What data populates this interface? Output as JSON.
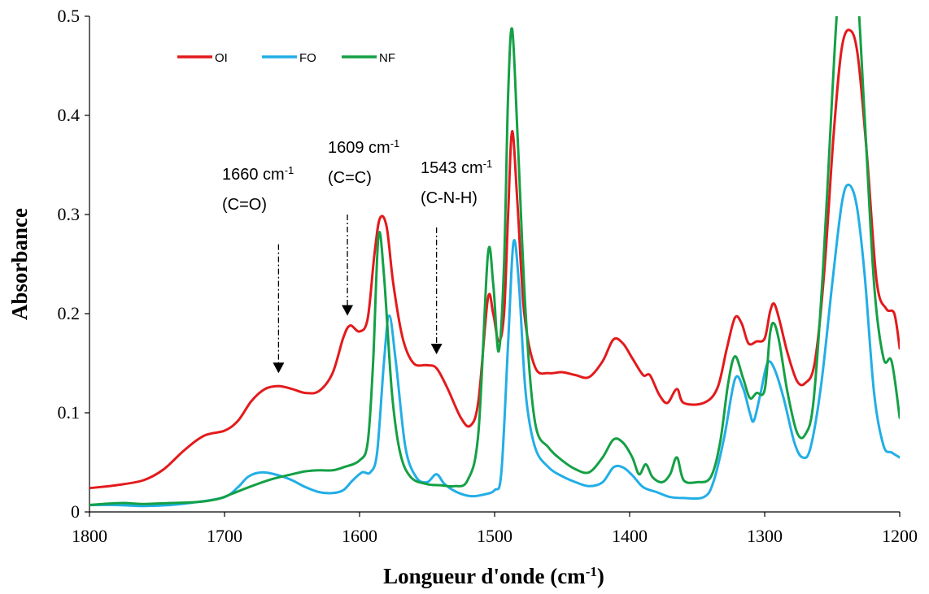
{
  "chart_data": {
    "type": "line",
    "xlabel": "Longueur d'onde (cm",
    "xlabel_sup": "-1",
    "xlabel_end": ")",
    "ylabel": "Absorbance",
    "xlim": [
      1800,
      1200
    ],
    "ylim": [
      0,
      0.5
    ],
    "x_reversed": true,
    "grid": false,
    "legend_position": "top-left",
    "x_ticks": [
      1800,
      1700,
      1600,
      1500,
      1400,
      1300,
      1200
    ],
    "y_ticks": [
      0,
      0.1,
      0.2,
      0.3,
      0.4,
      0.5
    ],
    "y_tick_labels": [
      "0",
      "0.1",
      "0.2",
      "0.3",
      "0.4",
      "0.5"
    ],
    "series": [
      {
        "name": "OI",
        "color": "#e31a1c",
        "points": [
          [
            1800,
            0.024
          ],
          [
            1780,
            0.027
          ],
          [
            1760,
            0.032
          ],
          [
            1745,
            0.043
          ],
          [
            1730,
            0.062
          ],
          [
            1715,
            0.077
          ],
          [
            1700,
            0.082
          ],
          [
            1690,
            0.092
          ],
          [
            1680,
            0.112
          ],
          [
            1670,
            0.124
          ],
          [
            1660,
            0.127
          ],
          [
            1650,
            0.124
          ],
          [
            1640,
            0.12
          ],
          [
            1630,
            0.122
          ],
          [
            1620,
            0.14
          ],
          [
            1612,
            0.176
          ],
          [
            1607,
            0.188
          ],
          [
            1600,
            0.182
          ],
          [
            1594,
            0.195
          ],
          [
            1589,
            0.26
          ],
          [
            1585,
            0.296
          ],
          [
            1580,
            0.288
          ],
          [
            1575,
            0.23
          ],
          [
            1568,
            0.175
          ],
          [
            1560,
            0.15
          ],
          [
            1550,
            0.148
          ],
          [
            1543,
            0.145
          ],
          [
            1535,
            0.125
          ],
          [
            1525,
            0.095
          ],
          [
            1518,
            0.087
          ],
          [
            1512,
            0.112
          ],
          [
            1505,
            0.215
          ],
          [
            1501,
            0.2
          ],
          [
            1497,
            0.172
          ],
          [
            1493,
            0.2
          ],
          [
            1490,
            0.3
          ],
          [
            1487,
            0.384
          ],
          [
            1483,
            0.31
          ],
          [
            1478,
            0.2
          ],
          [
            1470,
            0.146
          ],
          [
            1460,
            0.14
          ],
          [
            1450,
            0.141
          ],
          [
            1440,
            0.138
          ],
          [
            1430,
            0.136
          ],
          [
            1420,
            0.152
          ],
          [
            1412,
            0.174
          ],
          [
            1405,
            0.17
          ],
          [
            1398,
            0.155
          ],
          [
            1390,
            0.138
          ],
          [
            1385,
            0.138
          ],
          [
            1378,
            0.118
          ],
          [
            1372,
            0.11
          ],
          [
            1365,
            0.124
          ],
          [
            1360,
            0.11
          ],
          [
            1345,
            0.11
          ],
          [
            1335,
            0.125
          ],
          [
            1328,
            0.165
          ],
          [
            1322,
            0.196
          ],
          [
            1317,
            0.19
          ],
          [
            1312,
            0.17
          ],
          [
            1306,
            0.172
          ],
          [
            1300,
            0.175
          ],
          [
            1296,
            0.202
          ],
          [
            1293,
            0.21
          ],
          [
            1289,
            0.193
          ],
          [
            1283,
            0.16
          ],
          [
            1276,
            0.132
          ],
          [
            1270,
            0.13
          ],
          [
            1263,
            0.15
          ],
          [
            1256,
            0.24
          ],
          [
            1249,
            0.38
          ],
          [
            1243,
            0.467
          ],
          [
            1237,
            0.486
          ],
          [
            1231,
            0.46
          ],
          [
            1224,
            0.355
          ],
          [
            1217,
            0.232
          ],
          [
            1210,
            0.205
          ],
          [
            1204,
            0.2
          ],
          [
            1200,
            0.165
          ]
        ]
      },
      {
        "name": "FO",
        "color": "#22aee6",
        "points": [
          [
            1800,
            0.007
          ],
          [
            1780,
            0.007
          ],
          [
            1760,
            0.006
          ],
          [
            1740,
            0.007
          ],
          [
            1720,
            0.01
          ],
          [
            1700,
            0.015
          ],
          [
            1690,
            0.025
          ],
          [
            1682,
            0.036
          ],
          [
            1672,
            0.04
          ],
          [
            1660,
            0.037
          ],
          [
            1650,
            0.032
          ],
          [
            1640,
            0.025
          ],
          [
            1630,
            0.02
          ],
          [
            1620,
            0.019
          ],
          [
            1612,
            0.022
          ],
          [
            1605,
            0.032
          ],
          [
            1598,
            0.04
          ],
          [
            1592,
            0.04
          ],
          [
            1587,
            0.06
          ],
          [
            1582,
            0.15
          ],
          [
            1578,
            0.198
          ],
          [
            1573,
            0.15
          ],
          [
            1566,
            0.065
          ],
          [
            1558,
            0.035
          ],
          [
            1550,
            0.03
          ],
          [
            1543,
            0.038
          ],
          [
            1537,
            0.028
          ],
          [
            1528,
            0.02
          ],
          [
            1518,
            0.016
          ],
          [
            1510,
            0.017
          ],
          [
            1500,
            0.022
          ],
          [
            1495,
            0.04
          ],
          [
            1490,
            0.17
          ],
          [
            1486,
            0.272
          ],
          [
            1482,
            0.23
          ],
          [
            1477,
            0.12
          ],
          [
            1470,
            0.065
          ],
          [
            1460,
            0.045
          ],
          [
            1450,
            0.036
          ],
          [
            1440,
            0.03
          ],
          [
            1430,
            0.026
          ],
          [
            1420,
            0.03
          ],
          [
            1412,
            0.045
          ],
          [
            1405,
            0.045
          ],
          [
            1398,
            0.037
          ],
          [
            1390,
            0.025
          ],
          [
            1380,
            0.02
          ],
          [
            1370,
            0.015
          ],
          [
            1360,
            0.014
          ],
          [
            1345,
            0.015
          ],
          [
            1338,
            0.03
          ],
          [
            1330,
            0.075
          ],
          [
            1322,
            0.134
          ],
          [
            1316,
            0.125
          ],
          [
            1311,
            0.1
          ],
          [
            1308,
            0.092
          ],
          [
            1303,
            0.12
          ],
          [
            1298,
            0.15
          ],
          [
            1293,
            0.145
          ],
          [
            1286,
            0.115
          ],
          [
            1278,
            0.07
          ],
          [
            1272,
            0.055
          ],
          [
            1266,
            0.065
          ],
          [
            1258,
            0.13
          ],
          [
            1250,
            0.23
          ],
          [
            1243,
            0.31
          ],
          [
            1238,
            0.33
          ],
          [
            1232,
            0.31
          ],
          [
            1226,
            0.24
          ],
          [
            1219,
            0.12
          ],
          [
            1212,
            0.067
          ],
          [
            1206,
            0.06
          ],
          [
            1200,
            0.055
          ]
        ]
      },
      {
        "name": "NF",
        "color": "#14a045",
        "points": [
          [
            1800,
            0.007
          ],
          [
            1790,
            0.008
          ],
          [
            1775,
            0.009
          ],
          [
            1760,
            0.008
          ],
          [
            1740,
            0.009
          ],
          [
            1720,
            0.01
          ],
          [
            1705,
            0.013
          ],
          [
            1695,
            0.018
          ],
          [
            1680,
            0.026
          ],
          [
            1665,
            0.033
          ],
          [
            1650,
            0.038
          ],
          [
            1640,
            0.041
          ],
          [
            1630,
            0.042
          ],
          [
            1620,
            0.042
          ],
          [
            1612,
            0.045
          ],
          [
            1600,
            0.052
          ],
          [
            1594,
            0.07
          ],
          [
            1590,
            0.15
          ],
          [
            1586,
            0.278
          ],
          [
            1582,
            0.24
          ],
          [
            1576,
            0.12
          ],
          [
            1570,
            0.06
          ],
          [
            1562,
            0.035
          ],
          [
            1550,
            0.028
          ],
          [
            1540,
            0.027
          ],
          [
            1530,
            0.026
          ],
          [
            1520,
            0.032
          ],
          [
            1512,
            0.08
          ],
          [
            1505,
            0.259
          ],
          [
            1501,
            0.23
          ],
          [
            1497,
            0.162
          ],
          [
            1493,
            0.25
          ],
          [
            1490,
            0.42
          ],
          [
            1487,
            0.487
          ],
          [
            1483,
            0.38
          ],
          [
            1477,
            0.2
          ],
          [
            1470,
            0.09
          ],
          [
            1460,
            0.065
          ],
          [
            1450,
            0.052
          ],
          [
            1440,
            0.043
          ],
          [
            1430,
            0.04
          ],
          [
            1420,
            0.055
          ],
          [
            1412,
            0.073
          ],
          [
            1405,
            0.07
          ],
          [
            1398,
            0.055
          ],
          [
            1393,
            0.038
          ],
          [
            1388,
            0.048
          ],
          [
            1383,
            0.035
          ],
          [
            1376,
            0.03
          ],
          [
            1370,
            0.038
          ],
          [
            1365,
            0.055
          ],
          [
            1360,
            0.032
          ],
          [
            1350,
            0.03
          ],
          [
            1340,
            0.035
          ],
          [
            1333,
            0.07
          ],
          [
            1327,
            0.13
          ],
          [
            1322,
            0.157
          ],
          [
            1316,
            0.135
          ],
          [
            1311,
            0.115
          ],
          [
            1306,
            0.12
          ],
          [
            1300,
            0.123
          ],
          [
            1296,
            0.18
          ],
          [
            1293,
            0.19
          ],
          [
            1289,
            0.17
          ],
          [
            1283,
            0.12
          ],
          [
            1276,
            0.08
          ],
          [
            1270,
            0.078
          ],
          [
            1264,
            0.11
          ],
          [
            1257,
            0.24
          ],
          [
            1250,
            0.42
          ],
          [
            1245,
            0.53
          ],
          [
            1238,
            0.58
          ],
          [
            1232,
            0.54
          ],
          [
            1226,
            0.4
          ],
          [
            1219,
            0.23
          ],
          [
            1212,
            0.155
          ],
          [
            1206,
            0.152
          ],
          [
            1200,
            0.095
          ]
        ]
      }
    ],
    "annotations": [
      {
        "label": "1660 cm",
        "sup": "-1",
        "sublabel": "(C=O)",
        "x": 1660,
        "arrow_top_y": 0.27,
        "arrow_tip_y": 0.14
      },
      {
        "label": "1609 cm",
        "sup": "-1",
        "sublabel": "(C=C)",
        "x": 1609,
        "arrow_top_y": 0.3,
        "arrow_tip_y": 0.198
      },
      {
        "label": "1543 cm",
        "sup": "-1",
        "sublabel": "(C-N-H)",
        "x": 1543,
        "arrow_top_y": 0.287,
        "arrow_tip_y": 0.159
      }
    ]
  }
}
